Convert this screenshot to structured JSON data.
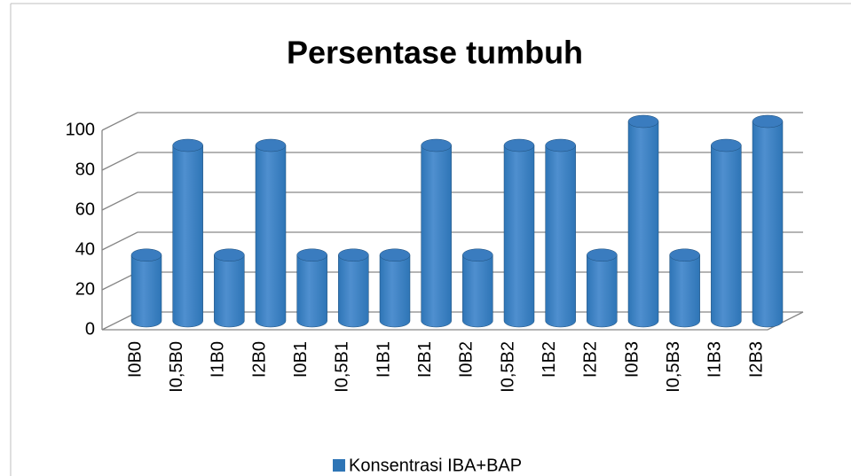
{
  "chart_data": {
    "type": "bar",
    "title": "Persentase tumbuh",
    "categories": [
      "I0B0",
      "I0,5B0",
      "I1B0",
      "I2B0",
      "I0B1",
      "I0,5B1",
      "I1B1",
      "I2B1",
      "I0B2",
      "I0,5B2",
      "I1B2",
      "I2B2",
      "I0B3",
      "I0,5B3",
      "I1B3",
      "I2B3"
    ],
    "series": [
      {
        "name": "Konsentrasi IBA+BAP",
        "color": "#2e75b6",
        "values": [
          33,
          88,
          33,
          88,
          33,
          33,
          33,
          88,
          33,
          88,
          88,
          33,
          100,
          33,
          88,
          100
        ]
      }
    ],
    "ylim": [
      0,
      100
    ],
    "yticks": [
      0,
      20,
      40,
      60,
      80,
      100
    ],
    "grid": true,
    "legend": "bottom"
  }
}
